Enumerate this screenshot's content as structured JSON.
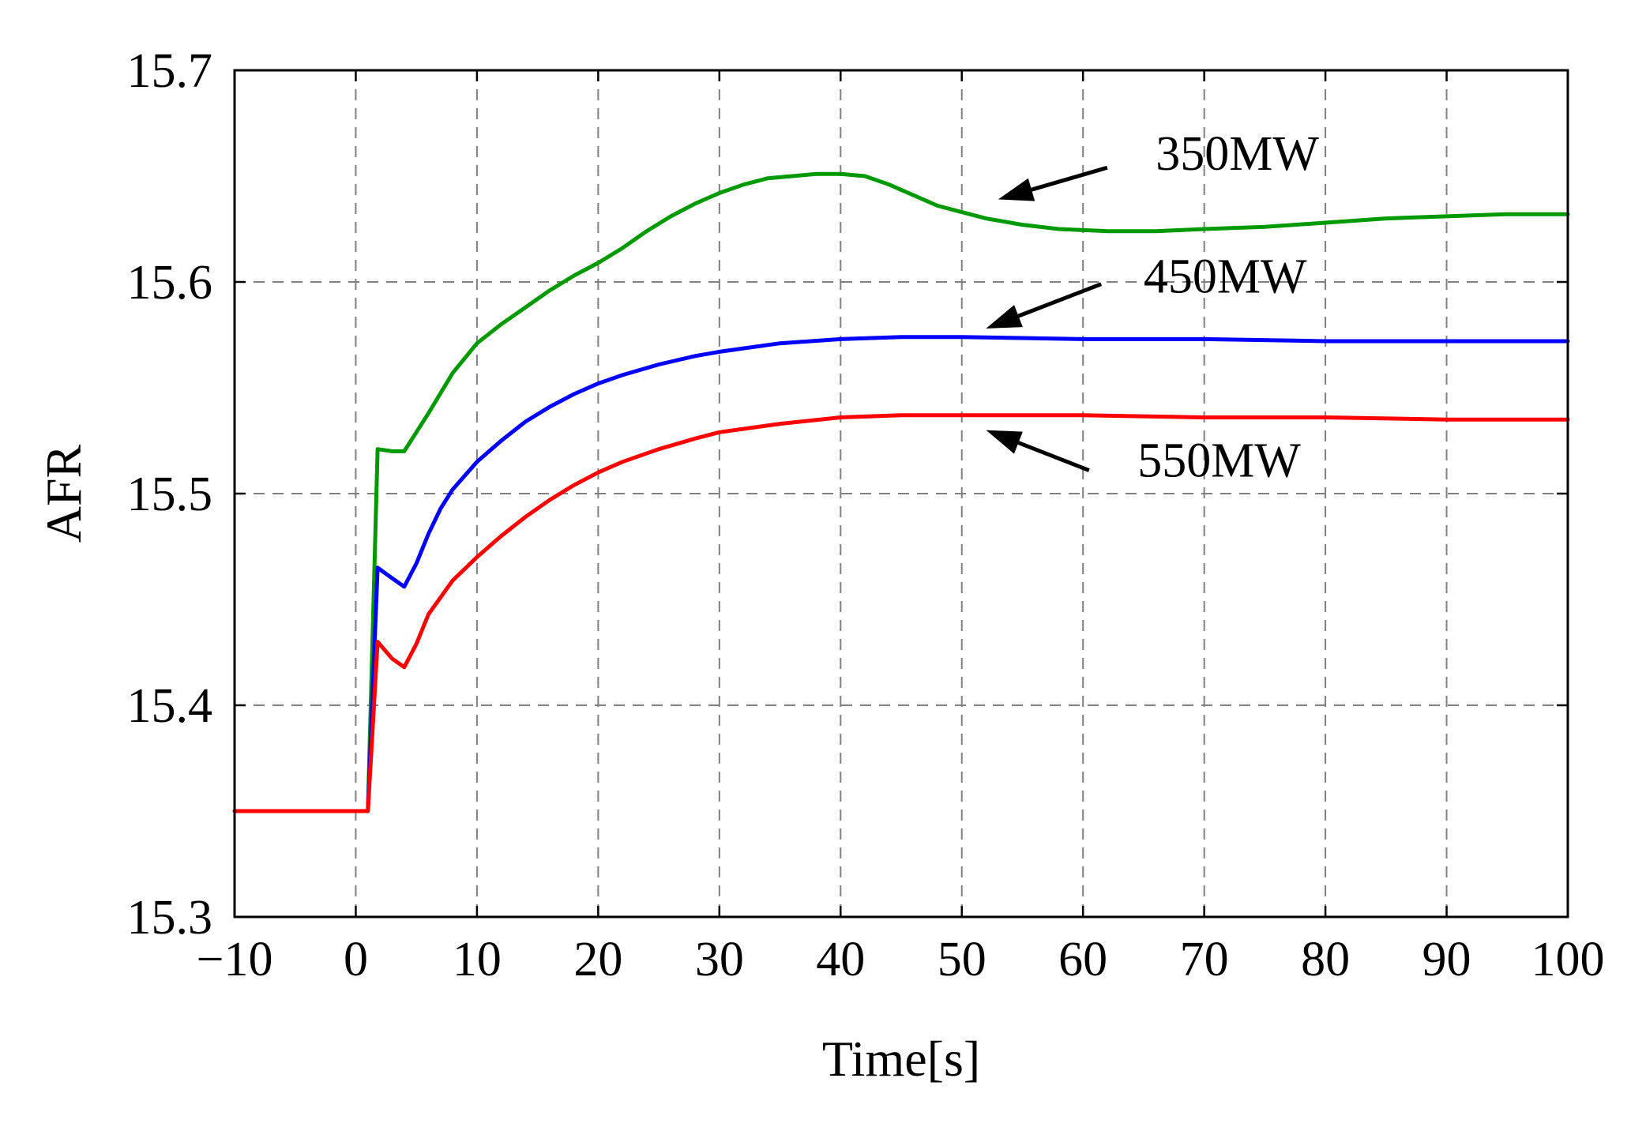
{
  "chart_data": {
    "type": "line",
    "title": "",
    "xlabel": "Time[s]",
    "ylabel": "AFR",
    "xlim": [
      -10,
      100
    ],
    "ylim": [
      15.3,
      15.7
    ],
    "grid": true,
    "x_ticks": [
      -10,
      0,
      10,
      20,
      30,
      40,
      50,
      60,
      70,
      80,
      90,
      100
    ],
    "x_tick_labels": [
      "−10",
      "0",
      "10",
      "20",
      "30",
      "40",
      "50",
      "60",
      "70",
      "80",
      "90",
      "100"
    ],
    "y_ticks": [
      15.3,
      15.4,
      15.5,
      15.6,
      15.7
    ],
    "y_tick_labels": [
      "15.3",
      "15.4",
      "15.5",
      "15.6",
      "15.7"
    ],
    "series": [
      {
        "name": "350MW",
        "color": "#009900",
        "points": [
          [
            -10,
            15.35
          ],
          [
            1,
            15.35
          ],
          [
            1.8,
            15.521
          ],
          [
            3,
            15.52
          ],
          [
            4,
            15.52
          ],
          [
            6,
            15.538
          ],
          [
            8,
            15.557
          ],
          [
            10,
            15.571
          ],
          [
            12,
            15.58
          ],
          [
            14,
            15.588
          ],
          [
            16,
            15.596
          ],
          [
            18,
            15.603
          ],
          [
            20,
            15.609
          ],
          [
            22,
            15.616
          ],
          [
            24,
            15.624
          ],
          [
            26,
            15.631
          ],
          [
            28,
            15.637
          ],
          [
            30,
            15.642
          ],
          [
            32,
            15.646
          ],
          [
            34,
            15.649
          ],
          [
            36,
            15.65
          ],
          [
            38,
            15.651
          ],
          [
            40,
            15.651
          ],
          [
            42,
            15.65
          ],
          [
            44,
            15.646
          ],
          [
            46,
            15.641
          ],
          [
            48,
            15.636
          ],
          [
            50,
            15.633
          ],
          [
            52,
            15.63
          ],
          [
            55,
            15.627
          ],
          [
            58,
            15.625
          ],
          [
            62,
            15.624
          ],
          [
            66,
            15.624
          ],
          [
            70,
            15.625
          ],
          [
            75,
            15.626
          ],
          [
            80,
            15.628
          ],
          [
            85,
            15.63
          ],
          [
            90,
            15.631
          ],
          [
            95,
            15.632
          ],
          [
            100,
            15.632
          ]
        ]
      },
      {
        "name": "450MW",
        "color": "#0000ff",
        "points": [
          [
            -10,
            15.35
          ],
          [
            1,
            15.35
          ],
          [
            1.8,
            15.465
          ],
          [
            3,
            15.46
          ],
          [
            4,
            15.456
          ],
          [
            5,
            15.467
          ],
          [
            6,
            15.481
          ],
          [
            7,
            15.493
          ],
          [
            8,
            15.502
          ],
          [
            10,
            15.515
          ],
          [
            12,
            15.525
          ],
          [
            14,
            15.534
          ],
          [
            16,
            15.541
          ],
          [
            18,
            15.547
          ],
          [
            20,
            15.552
          ],
          [
            22,
            15.556
          ],
          [
            25,
            15.561
          ],
          [
            28,
            15.565
          ],
          [
            30,
            15.567
          ],
          [
            35,
            15.571
          ],
          [
            40,
            15.573
          ],
          [
            45,
            15.574
          ],
          [
            50,
            15.574
          ],
          [
            60,
            15.573
          ],
          [
            70,
            15.573
          ],
          [
            80,
            15.572
          ],
          [
            90,
            15.572
          ],
          [
            100,
            15.572
          ]
        ]
      },
      {
        "name": "550MW",
        "color": "#ff0000",
        "points": [
          [
            -10,
            15.35
          ],
          [
            1,
            15.35
          ],
          [
            1.8,
            15.43
          ],
          [
            3,
            15.422
          ],
          [
            4,
            15.418
          ],
          [
            5,
            15.429
          ],
          [
            6,
            15.443
          ],
          [
            8,
            15.459
          ],
          [
            10,
            15.47
          ],
          [
            12,
            15.48
          ],
          [
            14,
            15.489
          ],
          [
            16,
            15.497
          ],
          [
            18,
            15.504
          ],
          [
            20,
            15.51
          ],
          [
            22,
            15.515
          ],
          [
            25,
            15.521
          ],
          [
            28,
            15.526
          ],
          [
            30,
            15.529
          ],
          [
            35,
            15.533
          ],
          [
            40,
            15.536
          ],
          [
            45,
            15.537
          ],
          [
            50,
            15.537
          ],
          [
            60,
            15.537
          ],
          [
            70,
            15.536
          ],
          [
            80,
            15.536
          ],
          [
            90,
            15.535
          ],
          [
            100,
            15.535
          ]
        ]
      }
    ],
    "annotations": [
      {
        "text": "350MW",
        "series": "350MW",
        "text_at": [
          66,
          15.653
        ],
        "tail": [
          62,
          15.654
        ],
        "head": [
          53,
          15.639
        ]
      },
      {
        "text": "450MW",
        "series": "450MW",
        "text_at": [
          65,
          15.595
        ],
        "tail": [
          61.5,
          15.599
        ],
        "head": [
          52,
          15.578
        ]
      },
      {
        "text": "550MW",
        "series": "550MW",
        "text_at": [
          64.5,
          15.508
        ],
        "tail": [
          60.5,
          15.511
        ],
        "head": [
          52,
          15.53
        ]
      }
    ]
  }
}
